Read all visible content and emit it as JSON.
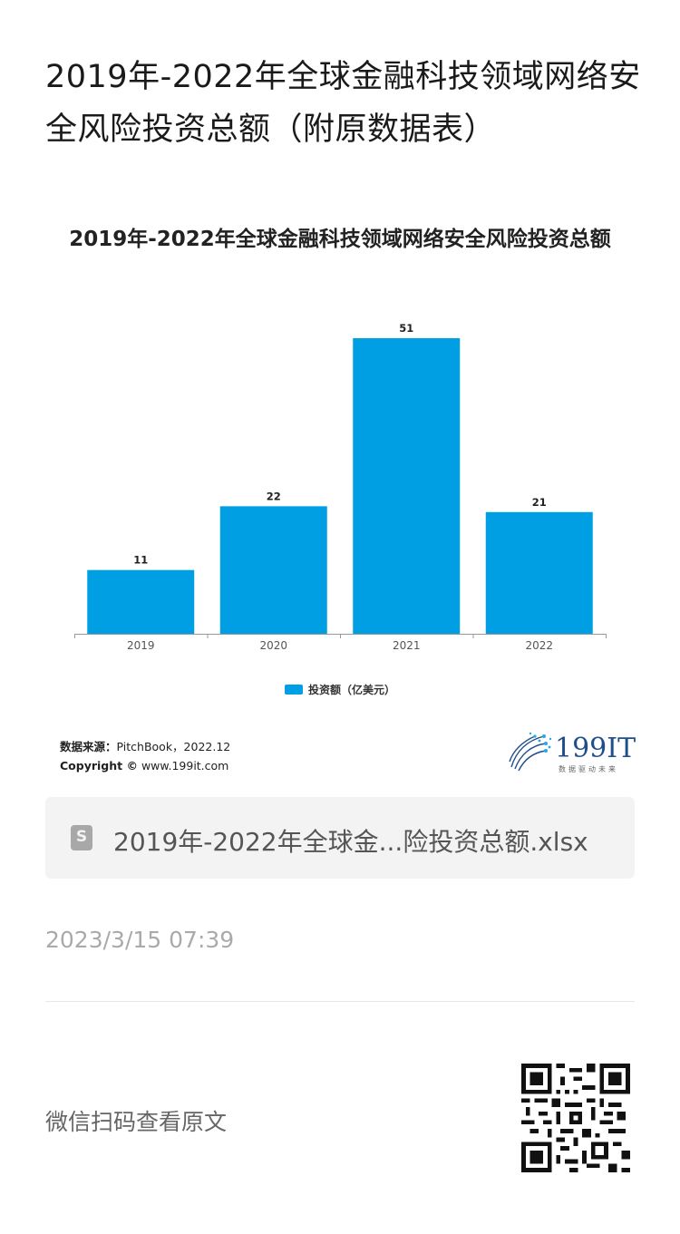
{
  "article": {
    "title": "2019年-2022年全球金融科技领域网络安全风险投资总额（附原数据表）"
  },
  "chart_data": {
    "type": "bar",
    "title": "2019年-2022年全球金融科技领域网络安全风险投资总额",
    "categories": [
      "2019",
      "2020",
      "2021",
      "2022"
    ],
    "series": [
      {
        "name": "投资额（亿美元）",
        "values": [
          11,
          22,
          51,
          21
        ],
        "color": "#009FE3"
      }
    ],
    "xlabel": "",
    "ylabel": "",
    "ylim": [
      0,
      55
    ],
    "grid": false,
    "legend": "bottom"
  },
  "source": {
    "label": "数据来源：",
    "text": "PitchBook，2022.12",
    "copyright_label": "Copyright ©",
    "copyright_text": " www.199it.com"
  },
  "logo": {
    "text": "199IT",
    "tagline": "数据驱动未来"
  },
  "file": {
    "icon": "S",
    "name": "2019年-2022年全球金...险投资总额.xlsx"
  },
  "timestamp": "2023/3/15 07:39",
  "footer": {
    "scan_text": "微信扫码查看原文"
  }
}
